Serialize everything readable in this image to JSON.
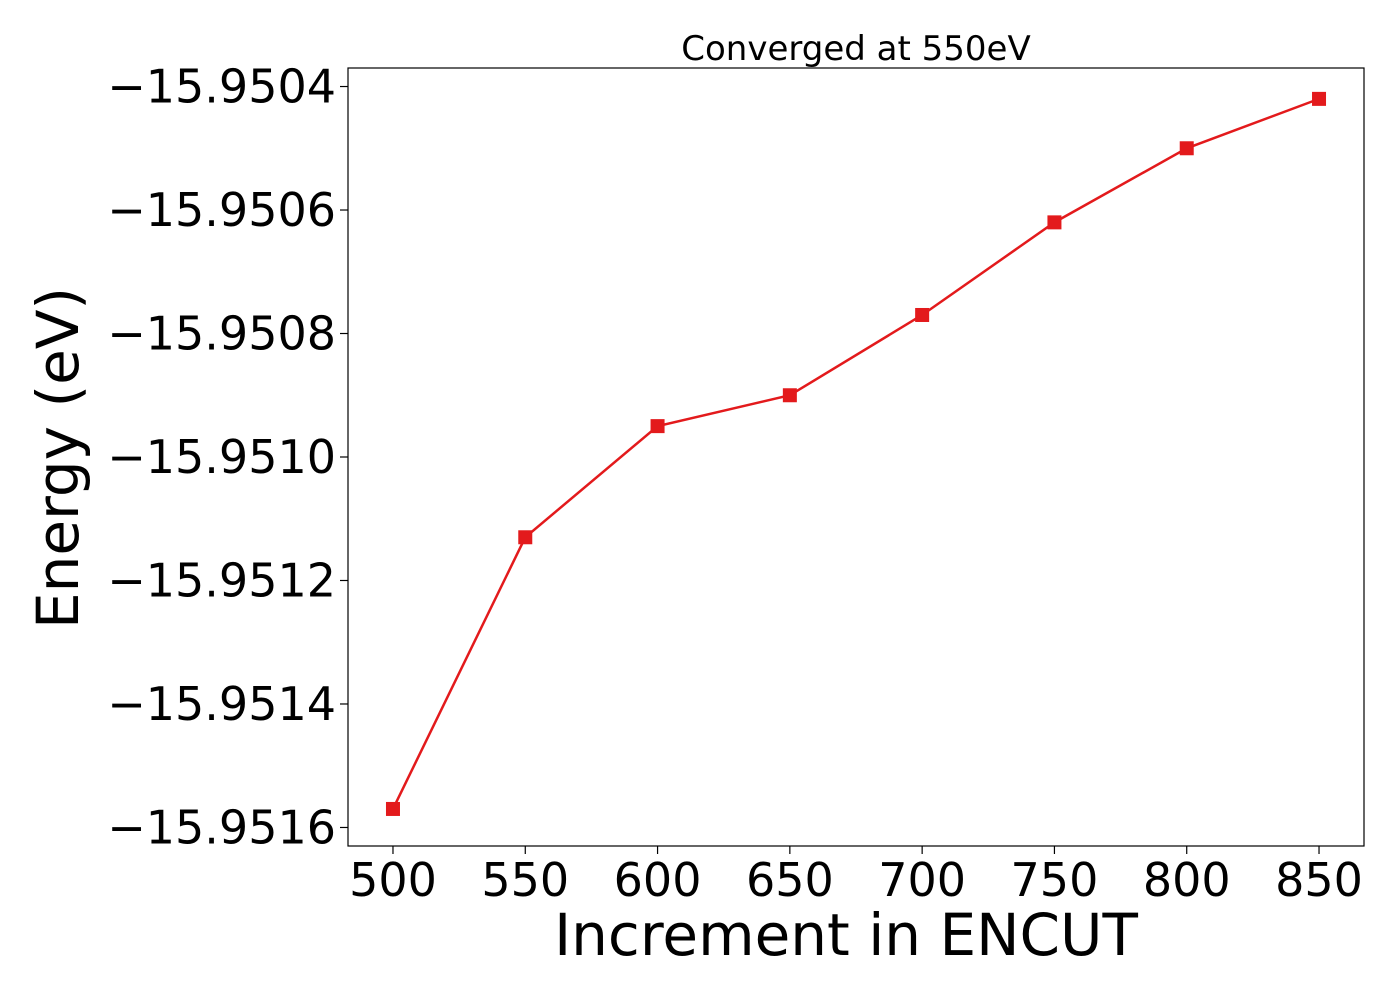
{
  "chart_data": {
    "type": "line",
    "title": "Converged at 550eV",
    "xlabel": "Increment in ENCUT",
    "ylabel": "Energy (eV)",
    "x": [
      500,
      550,
      600,
      650,
      700,
      750,
      800,
      850
    ],
    "series": [
      {
        "values": [
          -15.95157,
          -15.95113,
          -15.95095,
          -15.9509,
          -15.95077,
          -15.95062,
          -15.9505,
          -15.95042
        ],
        "color": "#e31a1c",
        "marker": "square"
      }
    ],
    "xlim": [
      483,
      867
    ],
    "ylim": [
      -15.95163,
      -15.95037
    ],
    "xticks": [
      500,
      550,
      600,
      650,
      700,
      750,
      800,
      850
    ],
    "xtick_labels": [
      "500",
      "550",
      "600",
      "650",
      "700",
      "750",
      "800",
      "850"
    ],
    "yticks": [
      -15.9516,
      -15.9514,
      -15.9512,
      -15.951,
      -15.9508,
      -15.9506,
      -15.9504
    ],
    "ytick_labels": [
      "−15.9516",
      "−15.9514",
      "−15.9512",
      "−15.9510",
      "−15.9508",
      "−15.9506",
      "−15.9504"
    ],
    "grid": false,
    "legend": "none"
  }
}
